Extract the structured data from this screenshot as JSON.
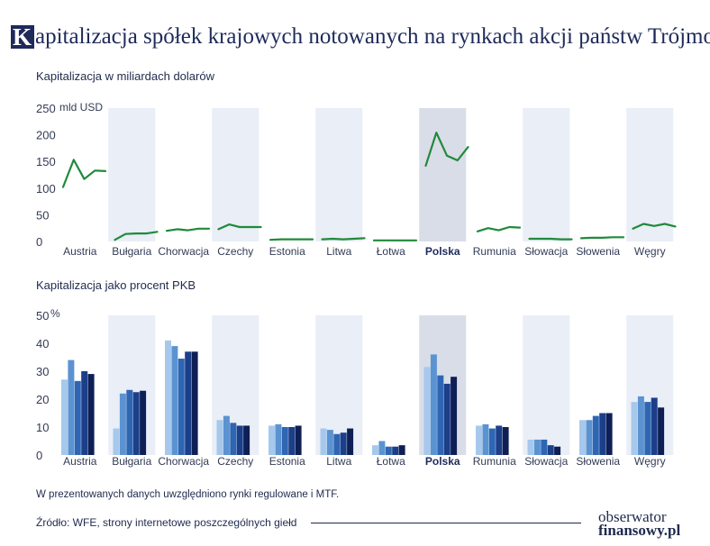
{
  "title": {
    "initial": "K",
    "rest": "apitalizacja spółek krajowych notowanych na rynkach akcji państw Trójmorza"
  },
  "colors": {
    "line": "#1f8a3a",
    "band": "#e9eef7",
    "band_highlight": "#d9dde8",
    "bars": [
      "#a6c8ec",
      "#5b93d1",
      "#2f66b3",
      "#1c3f8a",
      "#0e1f55"
    ]
  },
  "chart_data": [
    {
      "type": "line",
      "title": "Kapitalizacja w miliardach dolarów",
      "unit": "mld USD",
      "ylim": [
        0,
        250
      ],
      "yticks": [
        "0",
        "50",
        "100",
        "150",
        "200",
        "250"
      ],
      "highlight": "Polska",
      "categories": [
        "Austria",
        "Bułgaria",
        "Chorwacja",
        "Czechy",
        "Estonia",
        "Litwa",
        "Łotwa",
        "Polska",
        "Rumunia",
        "Słowacja",
        "Słowenia",
        "Węgry"
      ],
      "series": [
        [
          102,
          153,
          117,
          133,
          132
        ],
        [
          3,
          14,
          15,
          15,
          18
        ],
        [
          20,
          23,
          21,
          24,
          24
        ],
        [
          23,
          32,
          27,
          27,
          27
        ],
        [
          3,
          4,
          4,
          4,
          4
        ],
        [
          4,
          5,
          4,
          5,
          6
        ],
        [
          2,
          2,
          2,
          2,
          2
        ],
        [
          142,
          204,
          161,
          152,
          177
        ],
        [
          19,
          25,
          21,
          27,
          26
        ],
        [
          5,
          5,
          5,
          4,
          4
        ],
        [
          6,
          7,
          7,
          8,
          8
        ],
        [
          24,
          33,
          29,
          33,
          28
        ]
      ]
    },
    {
      "type": "bar",
      "title": "Kapitalizacja jako procent PKB",
      "unit": "%",
      "ylim": [
        0,
        50
      ],
      "yticks": [
        "0",
        "10",
        "20",
        "30",
        "40",
        "50"
      ],
      "highlight": "Polska",
      "categories": [
        "Austria",
        "Bułgaria",
        "Chorwacja",
        "Czechy",
        "Estonia",
        "Litwa",
        "Łotwa",
        "Polska",
        "Rumunia",
        "Słowacja",
        "Słowenia",
        "Węgry"
      ],
      "series": [
        [
          27,
          34,
          26.5,
          30,
          29
        ],
        [
          9.5,
          22,
          23.3,
          22.5,
          23
        ],
        [
          41,
          39,
          34.5,
          37,
          37
        ],
        [
          12.5,
          14,
          11.5,
          10.5,
          10.5
        ],
        [
          10.5,
          11,
          10,
          10,
          10.5
        ],
        [
          9.5,
          9,
          7.5,
          8,
          9.5
        ],
        [
          3.5,
          5,
          3,
          3,
          3.5
        ],
        [
          31.5,
          36,
          28.5,
          25.5,
          28
        ],
        [
          10.5,
          11,
          9.5,
          10.5,
          10
        ],
        [
          5.5,
          5.5,
          5.5,
          3.5,
          3
        ],
        [
          12.5,
          12.5,
          14,
          15,
          15
        ],
        [
          19,
          21,
          19,
          20.5,
          17
        ]
      ]
    }
  ],
  "note": "W prezentowanych danych uwzględniono rynki regulowane i MTF.",
  "source": "Źródło: WFE, strony internetowe poszczególnych giełd",
  "logo": {
    "line1": "obserwator",
    "line2": "finansowy.pl"
  }
}
